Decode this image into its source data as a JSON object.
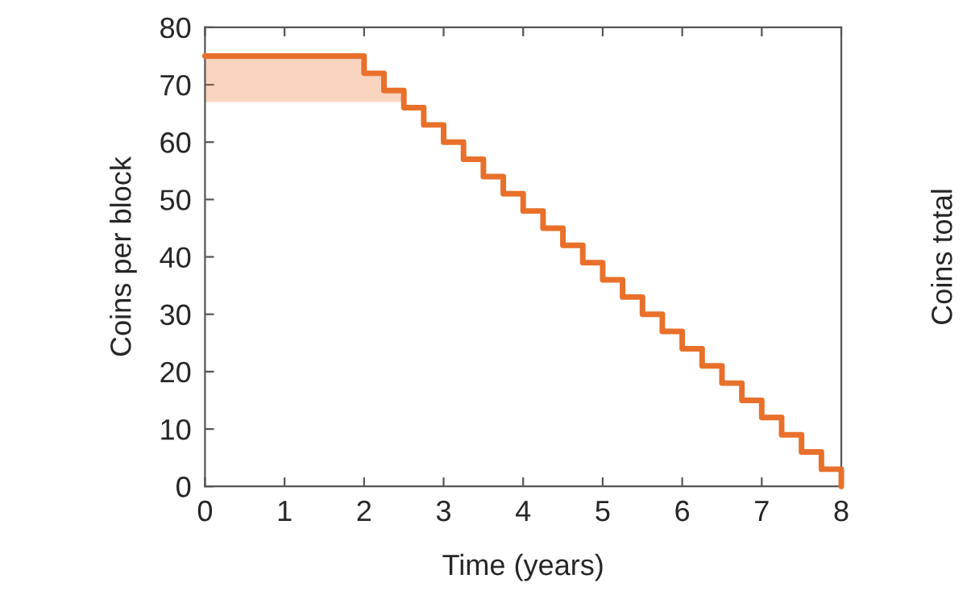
{
  "chart_data": {
    "type": "step",
    "xlabel": "Time (years)",
    "ylabel": "Coins per block",
    "y2label": "Coins total",
    "series": [
      {
        "color": "#e8702a",
        "x": [
          0,
          2,
          2.25,
          2.5,
          2.75,
          3,
          3.25,
          3.5,
          3.75,
          4,
          4.25,
          4.5,
          4.75,
          5,
          5.25,
          5.5,
          5.75,
          6,
          6.25,
          6.5,
          6.75,
          7,
          7.25,
          7.5,
          7.75,
          8
        ],
        "values": [
          75,
          72,
          69,
          66,
          63,
          60,
          57,
          54,
          51,
          48,
          45,
          42,
          39,
          36,
          33,
          30,
          27,
          24,
          21,
          18,
          15,
          12,
          9,
          6,
          3,
          0
        ],
        "lower": [
          67,
          67,
          67,
          67,
          null,
          null,
          null,
          null,
          null,
          null,
          null,
          null,
          null,
          null,
          null,
          null,
          null,
          null,
          null,
          null,
          null,
          null,
          null,
          null,
          null,
          null
        ],
        "upper": [
          75,
          72,
          69,
          67,
          null,
          null,
          null,
          null,
          null,
          null,
          null,
          null,
          null,
          null,
          null,
          null,
          null,
          null,
          null,
          null,
          null,
          null,
          null,
          null,
          null,
          null
        ]
      }
    ],
    "xlim": [
      0,
      8
    ],
    "xticks": [
      0,
      1,
      2,
      3,
      4,
      5,
      6,
      7,
      8
    ],
    "ylim": [
      0,
      80
    ],
    "yticks": [
      0,
      10,
      20,
      30,
      40,
      50,
      60,
      70,
      80
    ],
    "tick_labels": "xy",
    "grid": false,
    "legend": false,
    "marker": "none",
    "line_style": "solid"
  }
}
